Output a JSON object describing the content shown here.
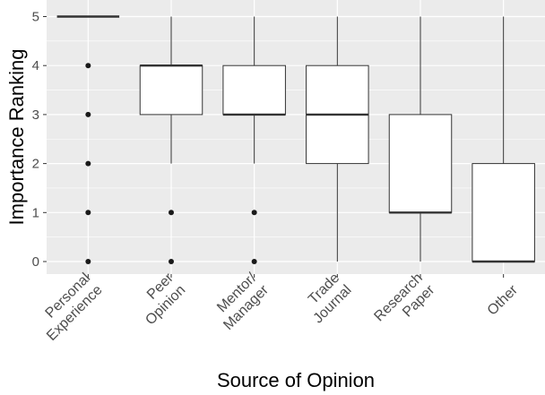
{
  "chart_data": {
    "type": "boxplot",
    "title": "",
    "xlabel": "Source of Opinion",
    "ylabel": "Importance Ranking",
    "ylim": [
      -0.25,
      5.25
    ],
    "y_ticks": [
      0,
      1,
      2,
      3,
      4,
      5
    ],
    "grid": true,
    "legend": "none",
    "colors": {
      "panel": "#ebebeb",
      "grid": "#ffffff",
      "box_fill": "#ffffff",
      "box_line": "#333333",
      "outlier": "#1a1a1a",
      "tick_text": "#4d4d4d"
    },
    "categories": [
      {
        "label_lines": [
          "Personal",
          "Experience"
        ],
        "q1": 5,
        "median": 5,
        "q3": 5,
        "lower": 5,
        "upper": 5,
        "outliers": [
          0,
          1,
          2,
          3,
          4
        ]
      },
      {
        "label_lines": [
          "Peer",
          "Opinion"
        ],
        "q1": 3,
        "median": 4,
        "q3": 4,
        "lower": 2,
        "upper": 5,
        "outliers": [
          0,
          1
        ]
      },
      {
        "label_lines": [
          "Mentor/",
          "Manager"
        ],
        "q1": 3,
        "median": 3,
        "q3": 4,
        "lower": 2,
        "upper": 5,
        "outliers": [
          0,
          1
        ]
      },
      {
        "label_lines": [
          "Trade",
          "Journal"
        ],
        "q1": 2,
        "median": 3,
        "q3": 4,
        "lower": 0,
        "upper": 5,
        "outliers": []
      },
      {
        "label_lines": [
          "Research",
          "Paper"
        ],
        "q1": 1,
        "median": 1,
        "q3": 3,
        "lower": 0,
        "upper": 5,
        "outliers": []
      },
      {
        "label_lines": [
          "Other"
        ],
        "q1": 0,
        "median": 0,
        "q3": 2,
        "lower": 0,
        "upper": 5,
        "outliers": []
      }
    ]
  }
}
